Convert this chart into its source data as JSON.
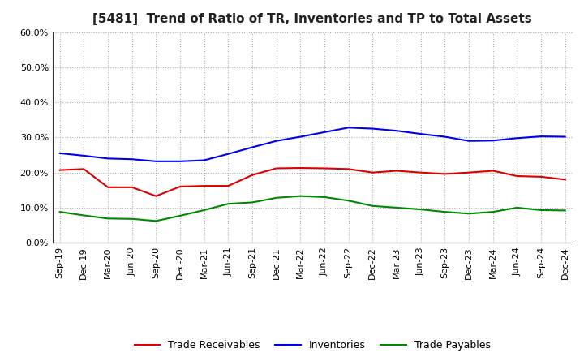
{
  "title": "[5481]  Trend of Ratio of TR, Inventories and TP to Total Assets",
  "labels": [
    "Sep-19",
    "Dec-19",
    "Mar-20",
    "Jun-20",
    "Sep-20",
    "Dec-20",
    "Mar-21",
    "Jun-21",
    "Sep-21",
    "Dec-21",
    "Mar-22",
    "Jun-22",
    "Sep-22",
    "Dec-22",
    "Mar-23",
    "Jun-23",
    "Sep-23",
    "Dec-23",
    "Mar-24",
    "Jun-24",
    "Sep-24",
    "Dec-24"
  ],
  "trade_receivables": [
    0.207,
    0.21,
    0.158,
    0.158,
    0.133,
    0.16,
    0.162,
    0.162,
    0.193,
    0.212,
    0.213,
    0.212,
    0.21,
    0.2,
    0.205,
    0.2,
    0.196,
    0.2,
    0.205,
    0.19,
    0.188,
    0.18
  ],
  "inventories": [
    0.255,
    0.248,
    0.24,
    0.238,
    0.232,
    0.232,
    0.235,
    0.253,
    0.272,
    0.29,
    0.302,
    0.315,
    0.328,
    0.325,
    0.319,
    0.31,
    0.302,
    0.29,
    0.291,
    0.298,
    0.303,
    0.302
  ],
  "trade_payables": [
    0.088,
    0.078,
    0.069,
    0.068,
    0.062,
    0.077,
    0.093,
    0.111,
    0.115,
    0.128,
    0.133,
    0.13,
    0.12,
    0.105,
    0.1,
    0.095,
    0.088,
    0.083,
    0.088,
    0.1,
    0.093,
    0.092
  ],
  "tr_color": "#dd0000",
  "inv_color": "#0000ee",
  "tp_color": "#008800",
  "ylim": [
    0.0,
    0.6
  ],
  "yticks": [
    0.0,
    0.1,
    0.2,
    0.3,
    0.4,
    0.5,
    0.6
  ],
  "bg_color": "#ffffff",
  "plot_bg_color": "#ffffff",
  "grid_color": "#aaaaaa",
  "legend_tr": "Trade Receivables",
  "legend_inv": "Inventories",
  "legend_tp": "Trade Payables",
  "title_fontsize": 11,
  "tick_fontsize": 8,
  "legend_fontsize": 9
}
